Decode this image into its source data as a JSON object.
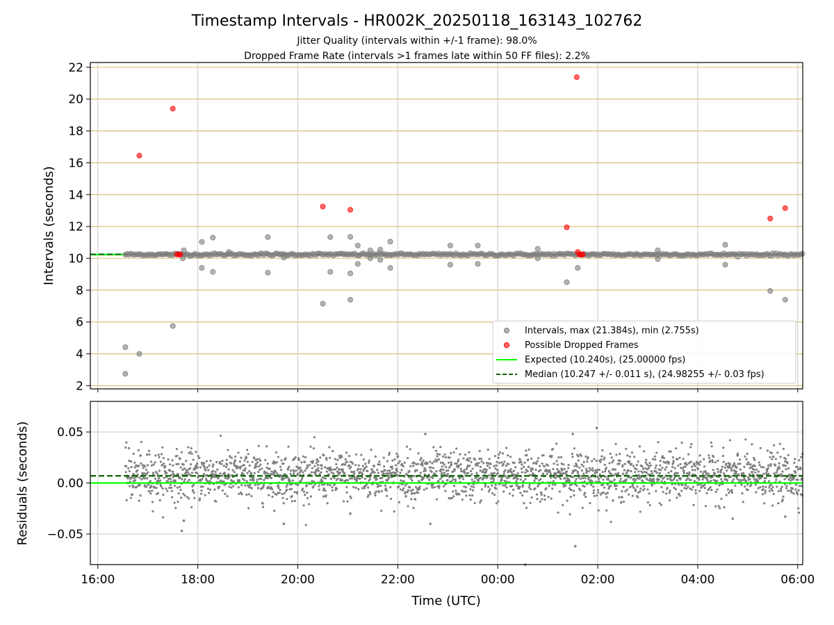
{
  "title": "Timestamp Intervals - HR002K_20250118_163143_102762",
  "subtitle_1": "Jitter Quality (intervals within +/-1 frame): 98.0%",
  "subtitle_2": "Dropped Frame Rate (intervals >1 frames late within 50 FF files): 2.2%",
  "colors": {
    "background": "#ffffff",
    "expected": "#00ff00",
    "median": "#006400",
    "intervals": "#808080",
    "dropped": "#ff0000",
    "grid_top": "#ccaa44",
    "grid": "#cccccc"
  },
  "chart_data": [
    {
      "type": "scatter",
      "xlabel": "",
      "ylabel": "Intervals (seconds)",
      "x_ticks": [
        "16:00",
        "18:00",
        "20:00",
        "22:00",
        "00:00",
        "02:00",
        "04:00",
        "06:00"
      ],
      "x_tick_hours": [
        16,
        18,
        20,
        22,
        24,
        26,
        28,
        30
      ],
      "xlim_hours": [
        15.85,
        30.1
      ],
      "ylim": [
        1.8,
        22.3
      ],
      "y_ticks": [
        2,
        4,
        6,
        8,
        10,
        12,
        14,
        16,
        18,
        20,
        22
      ],
      "grid": "on",
      "legend_position": "lower-right",
      "legend": [
        "Intervals, max (21.384s), min (2.755s)",
        "Possible Dropped Frames",
        "Expected (10.240s), (25.00000 fps)",
        "Median (10.247 +/- 0.011 s), (24.98255 +/- 0.03 fps)"
      ],
      "series": [
        {
          "name": "Intervals, max (21.384s), min (2.755s)",
          "baseline": 10.24,
          "x_range_hours": [
            16.55,
            30.1
          ],
          "outliers": [
            [
              16.55,
              4.42
            ],
            [
              16.55,
              2.75
            ],
            [
              16.83,
              4.0
            ],
            [
              17.5,
              5.75
            ],
            [
              17.7,
              10.0
            ],
            [
              17.72,
              10.5
            ],
            [
              18.08,
              11.03
            ],
            [
              18.08,
              9.4
            ],
            [
              18.3,
              11.3
            ],
            [
              18.3,
              9.15
            ],
            [
              18.62,
              10.4
            ],
            [
              19.4,
              11.33
            ],
            [
              19.4,
              9.1
            ],
            [
              19.72,
              10.05
            ],
            [
              20.5,
              7.15
            ],
            [
              20.65,
              11.33
            ],
            [
              20.65,
              9.15
            ],
            [
              21.05,
              11.35
            ],
            [
              21.05,
              9.05
            ],
            [
              21.05,
              7.4
            ],
            [
              21.2,
              10.8
            ],
            [
              21.2,
              9.65
            ],
            [
              21.45,
              10.5
            ],
            [
              21.45,
              10.0
            ],
            [
              21.65,
              10.55
            ],
            [
              21.65,
              9.9
            ],
            [
              21.85,
              11.05
            ],
            [
              21.85,
              9.4
            ],
            [
              23.05,
              10.8
            ],
            [
              23.05,
              9.6
            ],
            [
              23.6,
              10.8
            ],
            [
              23.6,
              9.65
            ],
            [
              24.8,
              10.6
            ],
            [
              24.8,
              10.0
            ],
            [
              25.38,
              8.5
            ],
            [
              25.6,
              9.4
            ],
            [
              27.2,
              10.5
            ],
            [
              27.2,
              9.95
            ],
            [
              28.55,
              10.85
            ],
            [
              28.55,
              9.6
            ],
            [
              29.45,
              7.95
            ],
            [
              29.75,
              7.4
            ]
          ]
        },
        {
          "name": "Possible Dropped Frames",
          "points": [
            [
              16.83,
              16.45
            ],
            [
              17.5,
              19.4
            ],
            [
              17.58,
              10.24
            ],
            [
              17.62,
              10.24
            ],
            [
              17.65,
              10.24
            ],
            [
              20.5,
              13.25
            ],
            [
              21.05,
              13.05
            ],
            [
              25.38,
              11.95
            ],
            [
              25.58,
              21.38
            ],
            [
              25.6,
              10.4
            ],
            [
              25.63,
              10.24
            ],
            [
              25.67,
              10.24
            ],
            [
              25.7,
              10.24
            ],
            [
              29.45,
              12.5
            ],
            [
              29.75,
              13.15
            ]
          ]
        },
        {
          "name": "Expected (10.240s), (25.00000 fps)",
          "value": 10.24
        },
        {
          "name": "Median (10.247 +/- 0.011 s), (24.98255 +/- 0.03 fps)",
          "value": 10.247
        }
      ]
    },
    {
      "type": "scatter",
      "xlabel": "Time (UTC)",
      "ylabel": "Residuals (seconds)",
      "x_ticks": [
        "16:00",
        "18:00",
        "20:00",
        "22:00",
        "00:00",
        "02:00",
        "04:00",
        "06:00"
      ],
      "x_tick_hours": [
        16,
        18,
        20,
        22,
        24,
        26,
        28,
        30
      ],
      "xlim_hours": [
        15.85,
        30.1
      ],
      "ylim": [
        -0.08,
        0.08
      ],
      "y_ticks": [
        -0.05,
        0.0,
        0.05
      ],
      "y_tick_labels": [
        "−0.05",
        "0.00",
        "0.05"
      ],
      "grid": "on",
      "series": [
        {
          "name": "residuals",
          "center": 0.007,
          "spread": 0.012,
          "x_range_hours": [
            16.55,
            30.1
          ],
          "outliers": [
            [
              17.68,
              -0.047
            ],
            [
              17.72,
              -0.037
            ],
            [
              19.72,
              -0.04
            ],
            [
              21.05,
              -0.03
            ],
            [
              22.65,
              -0.04
            ],
            [
              24.55,
              -0.08
            ],
            [
              25.55,
              -0.062
            ],
            [
              25.5,
              0.048
            ],
            [
              25.98,
              0.054
            ],
            [
              29.75,
              -0.033
            ],
            [
              28.7,
              -0.035
            ],
            [
              22.55,
              0.048
            ]
          ]
        },
        {
          "name": "expected",
          "value": 0.0
        },
        {
          "name": "median",
          "value": 0.007
        }
      ]
    }
  ]
}
